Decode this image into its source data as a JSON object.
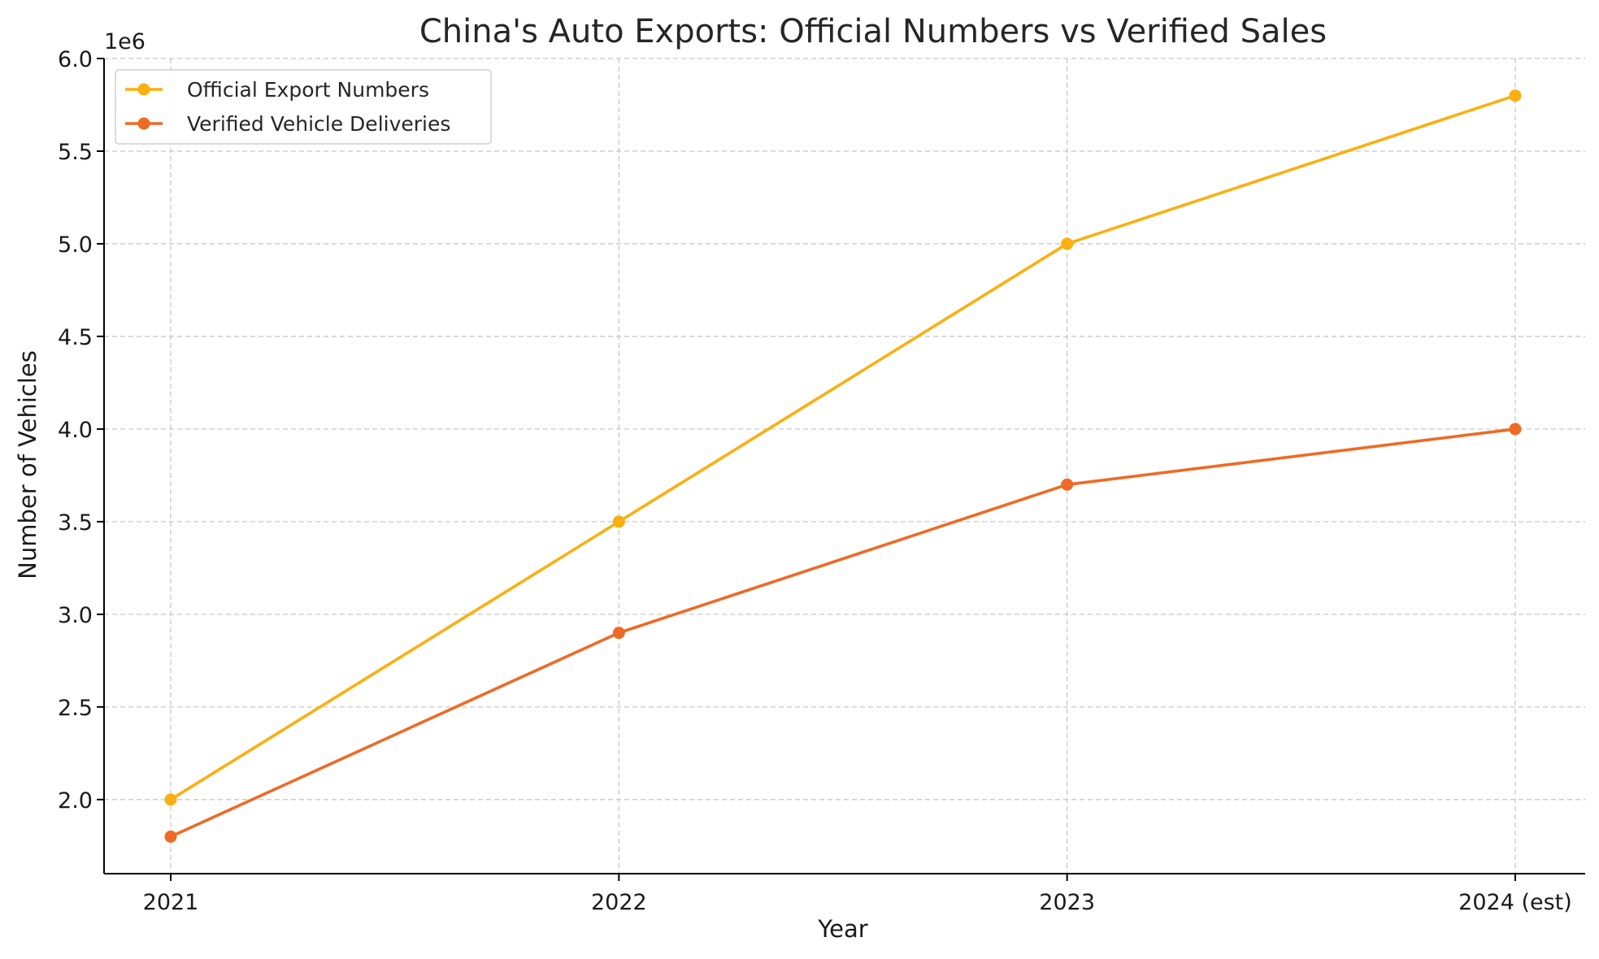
{
  "chart_data": {
    "type": "line",
    "title": "China's Auto Exports: Official Numbers vs Verified Sales",
    "xlabel": "Year",
    "ylabel": "Number of Vehicles",
    "y_offset_label": "1e6",
    "categories": [
      "2021",
      "2022",
      "2023",
      "2024 (est)"
    ],
    "yticks": [
      2.0,
      2.5,
      3.0,
      3.5,
      4.0,
      4.5,
      5.0,
      5.5,
      6.0
    ],
    "ytick_labels": [
      "2.0",
      "2.5",
      "3.0",
      "3.5",
      "4.0",
      "4.5",
      "5.0",
      "5.5",
      "6.0"
    ],
    "ylim": [
      1.6,
      6.0
    ],
    "y_scale": 1000000,
    "grid": true,
    "legend_position": "top-left",
    "series": [
      {
        "name": "Official Export Numbers",
        "color": "#FBAF10",
        "values": [
          2000000,
          3500000,
          5000000,
          5800000
        ]
      },
      {
        "name": "Verified Vehicle Deliveries",
        "color": "#EE6A25",
        "values": [
          1800000,
          2900000,
          3700000,
          4000000
        ]
      }
    ]
  }
}
